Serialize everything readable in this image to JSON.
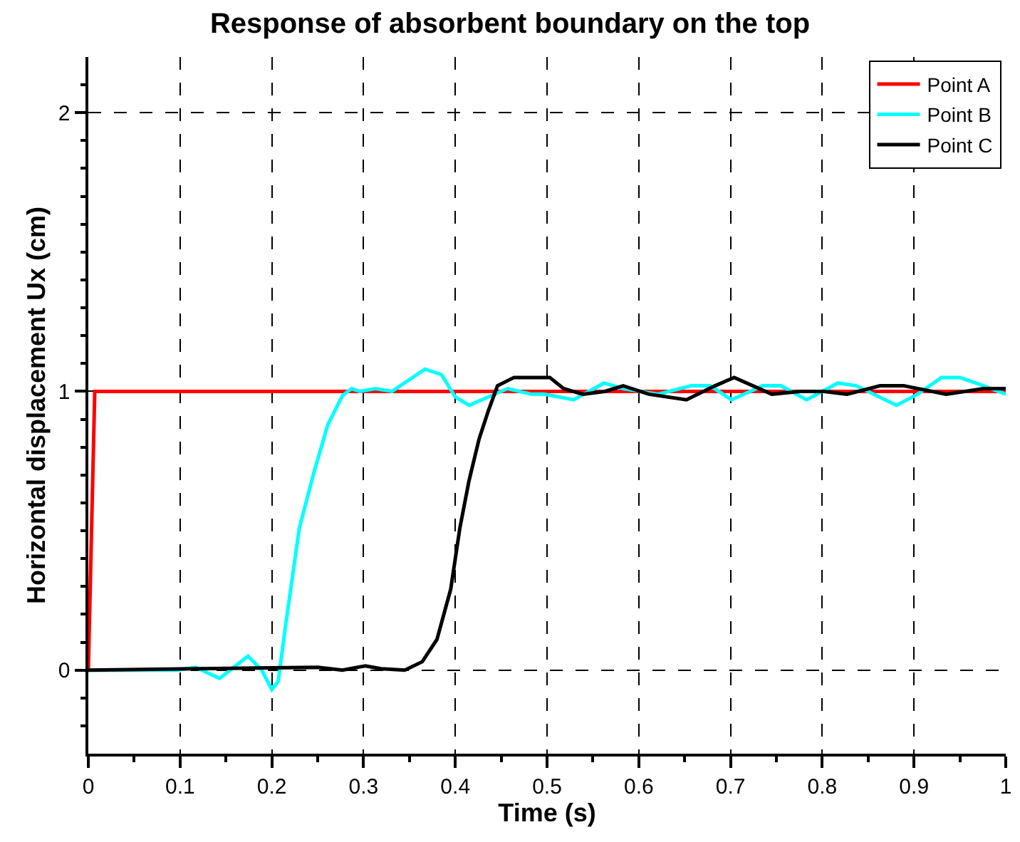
{
  "chart_data": {
    "type": "line",
    "title": "Response of absorbent boundary on the top",
    "xlabel": "Time (s)",
    "ylabel": "Horizontal displacement Ux (cm)",
    "xlim": [
      0,
      1
    ],
    "ylim": [
      -0.3,
      2.2
    ],
    "xticks": [
      0,
      {
        "value": 0.05,
        "label": null
      },
      0.1,
      {
        "value": 0.15,
        "label": null
      },
      0.2,
      {
        "value": 0.25,
        "label": null
      },
      0.3,
      {
        "value": 0.35,
        "label": null
      },
      0.4,
      {
        "value": 0.45,
        "label": null
      },
      0.5,
      {
        "value": 0.55,
        "label": null
      },
      0.6,
      {
        "value": 0.65,
        "label": null
      },
      0.7,
      {
        "value": 0.75,
        "label": null
      },
      0.8,
      {
        "value": 0.85,
        "label": null
      },
      0.9,
      {
        "value": 0.95,
        "label": null
      },
      1
    ],
    "yticks": [
      {
        "value": -0.2,
        "label": null
      },
      {
        "value": -0.1,
        "label": null
      },
      0,
      {
        "value": 0.1,
        "label": null
      },
      {
        "value": 0.2,
        "label": null
      },
      {
        "value": 0.3,
        "label": null
      },
      {
        "value": 0.4,
        "label": null
      },
      {
        "value": 0.5,
        "label": null
      },
      {
        "value": 0.6,
        "label": null
      },
      {
        "value": 0.7,
        "label": null
      },
      {
        "value": 0.8,
        "label": null
      },
      {
        "value": 0.9,
        "label": null
      },
      1,
      {
        "value": 1.1,
        "label": null
      },
      {
        "value": 1.2,
        "label": null
      },
      {
        "value": 1.3,
        "label": null
      },
      {
        "value": 1.4,
        "label": null
      },
      {
        "value": 1.5,
        "label": null
      },
      {
        "value": 1.6,
        "label": null
      },
      {
        "value": 1.7,
        "label": null
      },
      {
        "value": 1.8,
        "label": null
      },
      {
        "value": 1.9,
        "label": null
      },
      2,
      {
        "value": 2.1,
        "label": null
      }
    ],
    "grid": true,
    "legend": "top right",
    "line_style": "solid",
    "marker": "none",
    "series": [
      {
        "name": "Point A",
        "color": "#ff0000",
        "x": [
          0,
          0.007,
          1
        ],
        "values": [
          0,
          1,
          1
        ]
      },
      {
        "name": "Point B",
        "color": "#00ffff",
        "x": [
          0,
          0.097,
          0.117,
          0.143,
          0.174,
          0.189,
          0.2,
          0.207,
          0.215,
          0.23,
          0.246,
          0.261,
          0.277,
          0.287,
          0.296,
          0.313,
          0.331,
          0.349,
          0.367,
          0.385,
          0.4,
          0.415,
          0.436,
          0.457,
          0.483,
          0.497,
          0.529,
          0.562,
          0.583,
          0.621,
          0.657,
          0.678,
          0.701,
          0.735,
          0.755,
          0.783,
          0.817,
          0.837,
          0.881,
          0.904,
          0.93,
          0.95,
          0.976,
          1
        ],
        "values": [
          0,
          0,
          0.01,
          -0.03,
          0.05,
          0,
          -0.07,
          -0.04,
          0.16,
          0.51,
          0.71,
          0.88,
          0.985,
          1.01,
          1,
          1.01,
          1,
          1.04,
          1.08,
          1.06,
          0.98,
          0.95,
          0.98,
          1.01,
          0.99,
          0.99,
          0.97,
          1.03,
          1.01,
          0.99,
          1.02,
          1.02,
          0.97,
          1.02,
          1.02,
          0.97,
          1.03,
          1.02,
          0.95,
          0.99,
          1.05,
          1.05,
          1.02,
          0.99
        ]
      },
      {
        "name": "Point C",
        "color": "#000000",
        "x": [
          0,
          0.25,
          0.277,
          0.302,
          0.319,
          0.345,
          0.364,
          0.38,
          0.395,
          0.405,
          0.415,
          0.426,
          0.436,
          0.446,
          0.464,
          0.497,
          0.503,
          0.518,
          0.539,
          0.563,
          0.583,
          0.611,
          0.652,
          0.683,
          0.704,
          0.745,
          0.776,
          0.802,
          0.827,
          0.863,
          0.889,
          0.935,
          0.976,
          1
        ],
        "values": [
          0,
          0.01,
          0,
          0.015,
          0.005,
          0,
          0.03,
          0.11,
          0.29,
          0.51,
          0.68,
          0.83,
          0.93,
          1.02,
          1.05,
          1.05,
          1.05,
          1.01,
          0.99,
          1,
          1.02,
          0.99,
          0.97,
          1.02,
          1.05,
          0.99,
          1,
          1,
          0.99,
          1.02,
          1.02,
          0.99,
          1.01,
          1.01
        ]
      }
    ]
  }
}
